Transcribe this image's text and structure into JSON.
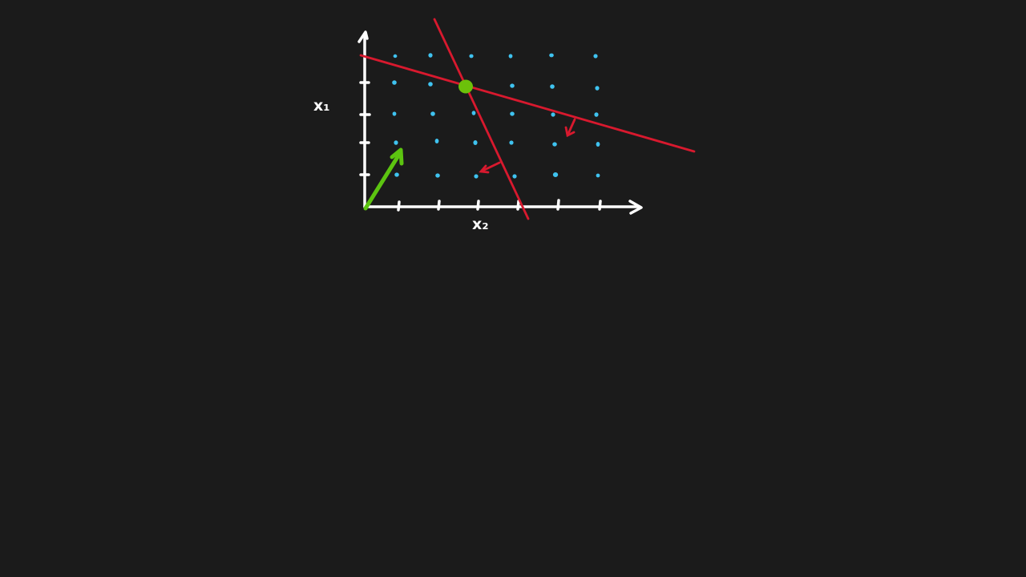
{
  "colors": {
    "background": "#1b1b1b",
    "axes": "#ffffff",
    "lattice_points": "#3fc3f0",
    "constraints": "#d8192e",
    "objective": "#5cc410",
    "optimum": "#6cc10a"
  },
  "labels": {
    "vertical_axis": "x₁",
    "horizontal_axis": "x₂"
  },
  "diagram": {
    "type": "integer-linear-program-sketch",
    "grid_columns": 6,
    "grid_rows": 5,
    "constraint_count": 2,
    "feasible_side_markers": "arrow",
    "optimum_marker": "dot",
    "objective_direction": "arrow"
  }
}
